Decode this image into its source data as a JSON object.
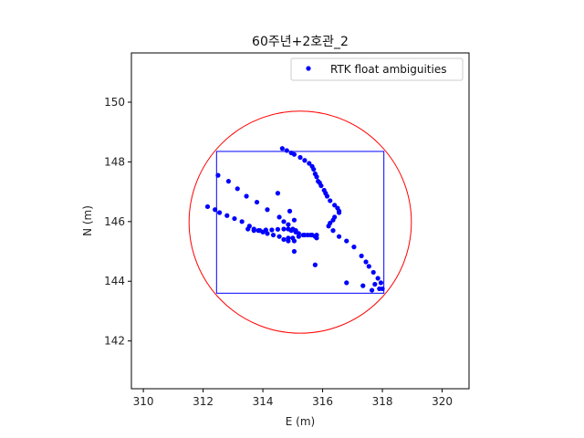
{
  "chart_data": {
    "type": "scatter",
    "title": "60주년+2호관_2",
    "xlabel": "E (m)",
    "ylabel": "N (m)",
    "xlim": [
      309.6,
      320.9
    ],
    "ylim": [
      140.4,
      151.65
    ],
    "xticks": [
      310,
      312,
      314,
      316,
      318,
      320
    ],
    "yticks": [
      142,
      144,
      146,
      148,
      150
    ],
    "grid": false,
    "legend": {
      "placement": "top-right",
      "entries": [
        "RTK float ambiguities"
      ]
    },
    "series": [
      {
        "name": "RTK float ambiguities",
        "color": "#0000ff",
        "marker": "point",
        "points": [
          [
            314.65,
            148.45
          ],
          [
            314.8,
            148.38
          ],
          [
            314.95,
            148.3
          ],
          [
            315.05,
            148.25
          ],
          [
            315.25,
            148.15
          ],
          [
            315.4,
            148.05
          ],
          [
            315.55,
            147.95
          ],
          [
            315.65,
            147.85
          ],
          [
            315.7,
            147.75
          ],
          [
            315.75,
            147.6
          ],
          [
            315.8,
            147.5
          ],
          [
            315.85,
            147.35
          ],
          [
            315.9,
            147.3
          ],
          [
            315.95,
            147.2
          ],
          [
            316.05,
            147.05
          ],
          [
            316.1,
            146.95
          ],
          [
            316.15,
            146.85
          ],
          [
            316.25,
            146.7
          ],
          [
            316.4,
            146.55
          ],
          [
            316.5,
            146.45
          ],
          [
            316.55,
            146.35
          ],
          [
            316.55,
            146.3
          ],
          [
            316.4,
            146.15
          ],
          [
            316.35,
            146.05
          ],
          [
            316.25,
            145.95
          ],
          [
            316.2,
            145.85
          ],
          [
            316.35,
            145.7
          ],
          [
            316.55,
            145.5
          ],
          [
            316.8,
            145.35
          ],
          [
            317.05,
            145.15
          ],
          [
            317.3,
            144.85
          ],
          [
            317.45,
            144.65
          ],
          [
            317.55,
            144.5
          ],
          [
            317.7,
            144.3
          ],
          [
            317.85,
            144.1
          ],
          [
            317.95,
            143.95
          ],
          [
            317.75,
            143.9
          ],
          [
            317.9,
            143.75
          ],
          [
            318.0,
            143.75
          ],
          [
            317.65,
            143.7
          ],
          [
            317.35,
            143.85
          ],
          [
            316.8,
            143.95
          ],
          [
            312.15,
            146.5
          ],
          [
            312.4,
            146.4
          ],
          [
            312.55,
            146.3
          ],
          [
            312.8,
            146.2
          ],
          [
            313.05,
            146.1
          ],
          [
            313.3,
            146.0
          ],
          [
            313.55,
            145.85
          ],
          [
            313.7,
            145.75
          ],
          [
            313.85,
            145.7
          ],
          [
            314.0,
            145.65
          ],
          [
            314.15,
            145.6
          ],
          [
            314.35,
            145.55
          ],
          [
            314.55,
            145.5
          ],
          [
            314.7,
            145.4
          ],
          [
            314.85,
            145.35
          ],
          [
            315.05,
            145.35
          ],
          [
            315.2,
            145.5
          ],
          [
            315.4,
            145.55
          ],
          [
            315.6,
            145.55
          ],
          [
            315.75,
            145.5
          ],
          [
            315.8,
            145.45
          ],
          [
            312.5,
            147.55
          ],
          [
            312.85,
            147.35
          ],
          [
            313.15,
            147.1
          ],
          [
            313.45,
            146.85
          ],
          [
            313.8,
            146.65
          ],
          [
            314.15,
            146.4
          ],
          [
            314.55,
            146.15
          ],
          [
            314.7,
            146.0
          ],
          [
            314.85,
            145.9
          ],
          [
            315.0,
            145.75
          ],
          [
            315.1,
            145.65
          ],
          [
            315.2,
            145.6
          ],
          [
            315.35,
            145.55
          ],
          [
            315.5,
            145.55
          ],
          [
            315.65,
            145.55
          ],
          [
            315.8,
            145.55
          ],
          [
            313.5,
            145.75
          ],
          [
            313.7,
            145.7
          ],
          [
            313.9,
            145.7
          ],
          [
            314.1,
            145.72
          ],
          [
            314.3,
            145.72
          ],
          [
            314.5,
            145.74
          ],
          [
            314.7,
            145.75
          ],
          [
            314.85,
            145.75
          ],
          [
            314.95,
            145.7
          ],
          [
            315.1,
            145.7
          ],
          [
            314.85,
            145.45
          ],
          [
            315.0,
            145.45
          ],
          [
            315.05,
            145.0
          ],
          [
            314.9,
            146.35
          ],
          [
            315.05,
            146.05
          ],
          [
            314.5,
            146.95
          ],
          [
            315.75,
            144.55
          ]
        ]
      }
    ],
    "overlays": [
      {
        "name": "bounding rectangle",
        "shape": "rectangle",
        "color": "#0000ff",
        "x": [
          312.45,
          318.05
        ],
        "y": [
          143.6,
          148.35
        ]
      },
      {
        "name": "bounding circle",
        "shape": "circle",
        "color": "#ff0000",
        "center": [
          315.25,
          145.98
        ],
        "radius": 3.72
      }
    ]
  }
}
